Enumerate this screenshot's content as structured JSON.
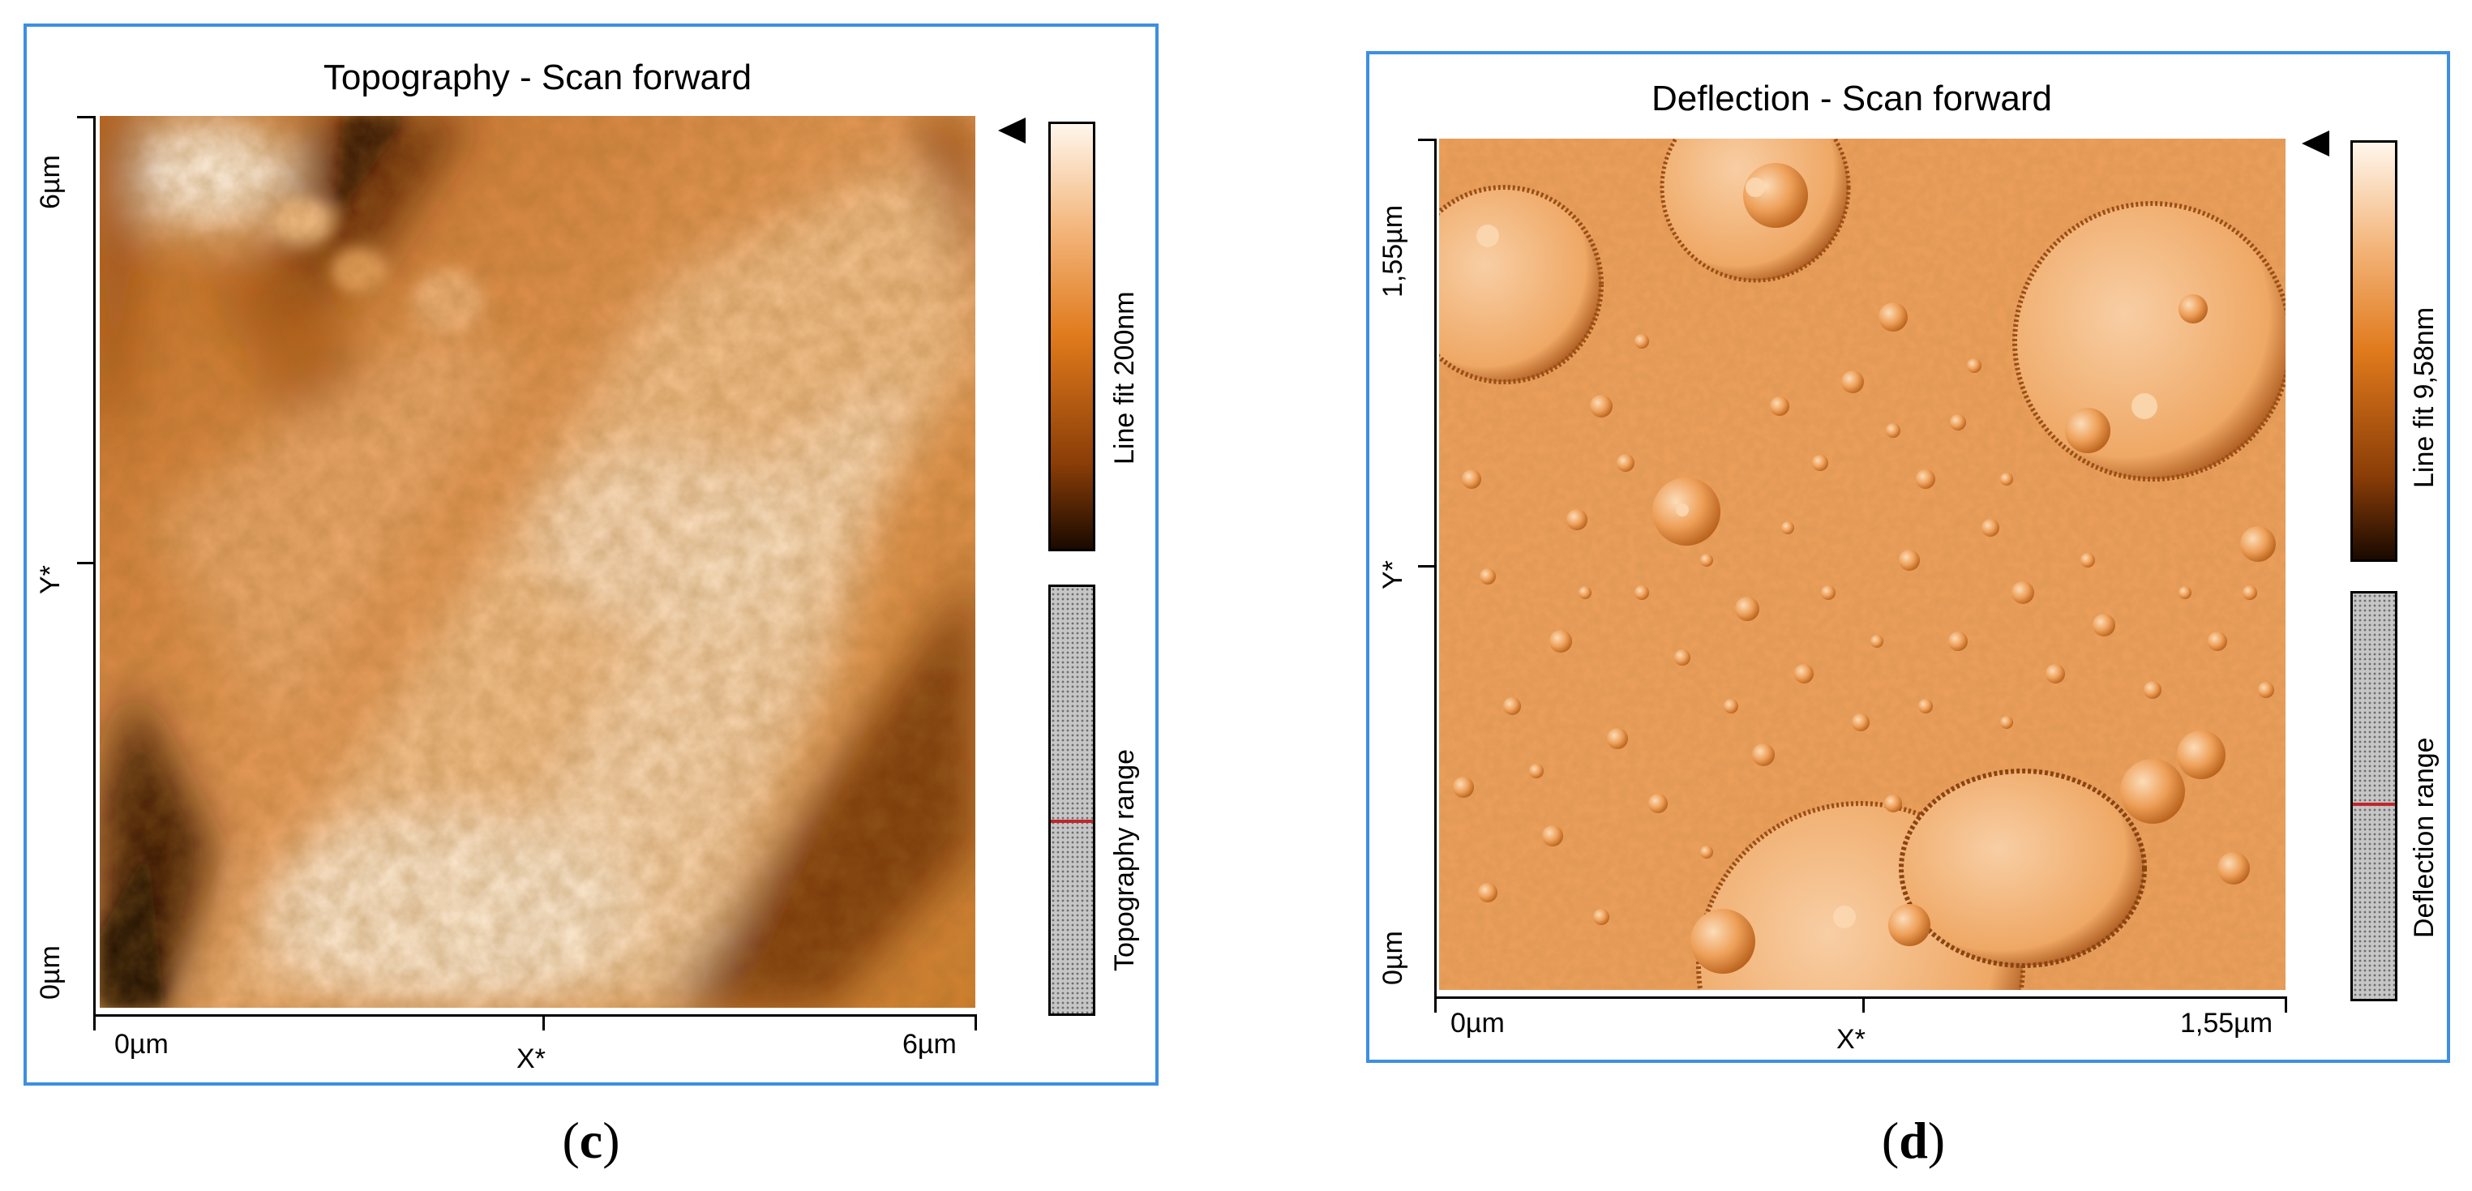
{
  "panels": [
    {
      "id": "c",
      "title": "Topography - Scan forward",
      "y_axis_label": "Y*",
      "x_axis_label": "X*",
      "y_ticks": [
        "6µm",
        "0µm"
      ],
      "x_ticks": [
        "0µm",
        "6µm"
      ],
      "colorbar_label": "Line fit 200nm",
      "range_label": "Topography range",
      "range_marker_position": 0.54,
      "caption_open": "(",
      "caption_letter": "c",
      "caption_close": ")"
    },
    {
      "id": "d",
      "title": "Deflection - Scan forward",
      "y_axis_label": "Y*",
      "x_axis_label": "X*",
      "y_ticks": [
        "1,55µm",
        "0µm"
      ],
      "x_ticks": [
        "0µm",
        "1,55µm"
      ],
      "colorbar_label": "Line fit 9,58nm",
      "range_label": "Deflection range",
      "range_marker_position": 0.51,
      "caption_open": "(",
      "caption_letter": "d",
      "caption_close": ")"
    }
  ],
  "colors": {
    "frame_border": "#3d8fe0",
    "afm_dark": "#1a0900",
    "afm_mid": "#e07a1c",
    "afm_light": "#fff6ec",
    "range_marker": "#c0262c"
  }
}
